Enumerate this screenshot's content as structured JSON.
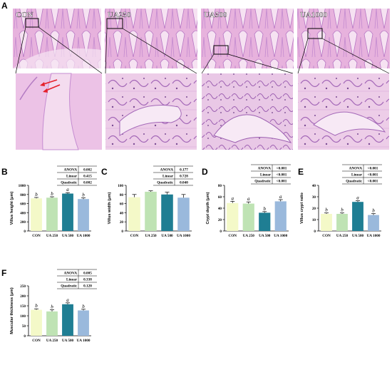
{
  "figure": {
    "section_a_label": "A",
    "section_b_label": "B",
    "section_c_label": "C",
    "section_d_label": "D",
    "section_e_label": "E",
    "section_f_label": "F",
    "micrographs": [
      {
        "label": "CON"
      },
      {
        "label": "UA250"
      },
      {
        "label": "UA500"
      },
      {
        "label": "UA1000"
      }
    ]
  },
  "chart_data": [
    {
      "panel": "B",
      "type": "bar",
      "categories": [
        "CON",
        "UA 250",
        "UA 500",
        "UA 1000"
      ],
      "values": [
        715,
        730,
        820,
        700
      ],
      "errors": [
        20,
        20,
        20,
        25
      ],
      "letters": [
        "b",
        "b",
        "a",
        "b"
      ],
      "ylabel": "Villus height (μm)",
      "ylim": [
        0,
        1000
      ],
      "yticks": [
        0,
        200,
        400,
        600,
        800,
        1000
      ],
      "stats": [
        [
          "ANOVA",
          "0.002"
        ],
        [
          "Linear",
          "0.415"
        ],
        [
          "Quadratic",
          "0.002"
        ]
      ]
    },
    {
      "panel": "C",
      "type": "bar",
      "categories": [
        "CON",
        "UA 250",
        "UA 500",
        "UA 1000"
      ],
      "values": [
        74,
        86,
        80,
        73
      ],
      "errors": [
        6,
        2,
        5,
        7
      ],
      "letters": [
        "",
        "",
        "",
        ""
      ],
      "ylabel": "Villus width (μm)",
      "ylim": [
        0,
        100
      ],
      "yticks": [
        0,
        20,
        40,
        60,
        80,
        100
      ],
      "stats": [
        [
          "ANOVA",
          "0.177"
        ],
        [
          "Linear",
          "0.728"
        ],
        [
          "Quadratic",
          "0.040"
        ]
      ]
    },
    {
      "panel": "D",
      "type": "bar",
      "categories": [
        "CON",
        "UA 250",
        "UA 500",
        "UA 1000"
      ],
      "values": [
        49,
        48,
        32,
        52
      ],
      "errors": [
        3,
        3,
        2,
        3
      ],
      "letters": [
        "a",
        "a",
        "b",
        "a"
      ],
      "ylabel": "Crypt depth (μm)",
      "ylim": [
        0,
        80
      ],
      "yticks": [
        0,
        20,
        40,
        60,
        80
      ],
      "stats": [
        [
          "ANOVA",
          "<0.001"
        ],
        [
          "Linear",
          "<0.001"
        ],
        [
          "Quadratic",
          "<0.001"
        ]
      ]
    },
    {
      "panel": "E",
      "type": "bar",
      "categories": [
        "CON",
        "UA 250",
        "UA 500",
        "UA 1000"
      ],
      "values": [
        15,
        15,
        25.5,
        14
      ],
      "errors": [
        0.8,
        0.8,
        1,
        1.2
      ],
      "letters": [
        "b",
        "b",
        "a",
        "b"
      ],
      "ylabel": "Villus crypt ratio",
      "ylim": [
        0,
        40
      ],
      "yticks": [
        0,
        10,
        20,
        30,
        40
      ],
      "stats": [
        [
          "ANOVA",
          "<0.001"
        ],
        [
          "Linear",
          "<0.001"
        ],
        [
          "Quadratic",
          "<0.001"
        ]
      ]
    },
    {
      "panel": "F",
      "type": "bar",
      "categories": [
        "CON",
        "UA 250",
        "UA 500",
        "UA 1000"
      ],
      "values": [
        130,
        122,
        158,
        127
      ],
      "errors": [
        5,
        8,
        7,
        6
      ],
      "letters": [
        "b",
        "b",
        "a",
        "b"
      ],
      "ylabel": "Muscular thickness (μm)",
      "ylim": [
        0,
        250
      ],
      "yticks": [
        0,
        50,
        100,
        150,
        200,
        250
      ],
      "stats": [
        [
          "ANOVA",
          "0.005"
        ],
        [
          "Linear",
          "0.338"
        ],
        [
          "Quadratic",
          "0.120"
        ]
      ]
    }
  ],
  "colors": {
    "bars": [
      "#f4f9c8",
      "#bfe3b4",
      "#1f7e93",
      "#9ab9dc"
    ],
    "tissue_background": "#e8b8de",
    "tissue_dark": "#b777c4",
    "tissue_light": "#f3ddf0",
    "arrow": "#e5202a"
  }
}
